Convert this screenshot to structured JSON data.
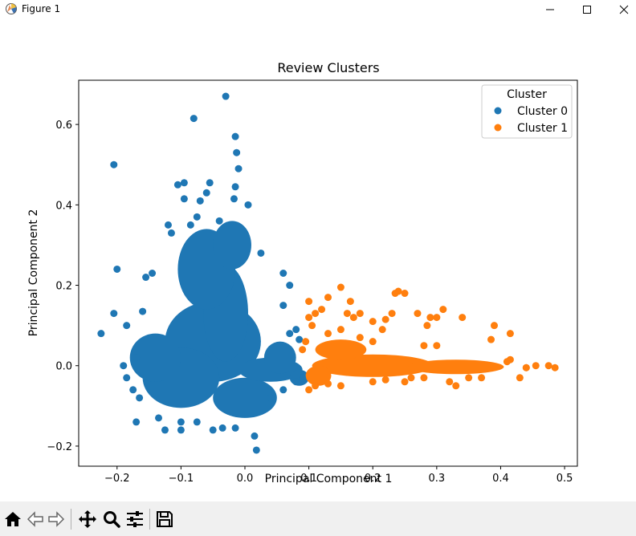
{
  "window": {
    "title": "Figure 1",
    "app_icon": "matplotlib-figure-icon",
    "controls": [
      "minimize-icon",
      "maximize-icon",
      "close-icon"
    ]
  },
  "toolbar": {
    "buttons": [
      "home-icon",
      "back-icon",
      "forward-icon",
      "pan-icon",
      "zoom-icon",
      "configure-subplots-icon",
      "save-icon"
    ]
  },
  "chart_data": {
    "type": "scatter",
    "title": "Review Clusters",
    "xlabel": "Principal Component 1",
    "ylabel": "Principal Component 2",
    "xlim": [
      -0.26,
      0.52
    ],
    "ylim": [
      -0.25,
      0.71
    ],
    "xticks": [
      "−0.2",
      "−0.1",
      "0.0",
      "0.1",
      "0.2",
      "0.3",
      "0.4",
      "0.5"
    ],
    "xtick_values": [
      -0.2,
      -0.1,
      0.0,
      0.1,
      0.2,
      0.3,
      0.4,
      0.5
    ],
    "yticks": [
      "−0.2",
      "0.0",
      "0.2",
      "0.4",
      "0.6"
    ],
    "ytick_values": [
      -0.2,
      0.0,
      0.2,
      0.4,
      0.6
    ],
    "grid": false,
    "legend": {
      "title": "Cluster",
      "placement": "top-right"
    },
    "series": [
      {
        "name": "Cluster 0",
        "color": "#1f77b4",
        "points": [
          [
            -0.03,
            0.67
          ],
          [
            -0.08,
            0.615
          ],
          [
            -0.205,
            0.5
          ],
          [
            -0.015,
            0.57
          ],
          [
            -0.013,
            0.53
          ],
          [
            -0.01,
            0.49
          ],
          [
            -0.015,
            0.445
          ],
          [
            -0.095,
            0.455
          ],
          [
            -0.105,
            0.45
          ],
          [
            -0.055,
            0.455
          ],
          [
            -0.095,
            0.415
          ],
          [
            -0.07,
            0.41
          ],
          [
            -0.06,
            0.43
          ],
          [
            -0.017,
            0.415
          ],
          [
            0.005,
            0.4
          ],
          [
            -0.2,
            0.24
          ],
          [
            -0.225,
            0.08
          ],
          [
            -0.205,
            0.13
          ],
          [
            -0.19,
            0.0
          ],
          [
            -0.185,
            0.1
          ],
          [
            -0.17,
            0.02
          ],
          [
            -0.16,
            0.135
          ],
          [
            -0.155,
            0.22
          ],
          [
            -0.145,
            0.23
          ],
          [
            -0.12,
            0.35
          ],
          [
            -0.115,
            0.33
          ],
          [
            -0.085,
            0.35
          ],
          [
            -0.075,
            0.37
          ],
          [
            -0.04,
            0.36
          ],
          [
            0.025,
            0.28
          ],
          [
            0.06,
            0.23
          ],
          [
            0.07,
            0.2
          ],
          [
            0.06,
            0.15
          ],
          [
            0.08,
            0.09
          ],
          [
            0.085,
            0.065
          ],
          [
            0.07,
            0.08
          ],
          [
            -0.185,
            -0.03
          ],
          [
            -0.175,
            -0.06
          ],
          [
            -0.165,
            -0.08
          ],
          [
            -0.17,
            -0.14
          ],
          [
            -0.135,
            -0.13
          ],
          [
            -0.125,
            -0.16
          ],
          [
            -0.1,
            -0.16
          ],
          [
            -0.1,
            -0.14
          ],
          [
            -0.075,
            -0.14
          ],
          [
            -0.05,
            -0.16
          ],
          [
            -0.035,
            -0.155
          ],
          [
            -0.015,
            -0.155
          ],
          [
            0.015,
            -0.175
          ],
          [
            0.018,
            -0.21
          ],
          [
            0.04,
            -0.08
          ],
          [
            0.06,
            -0.06
          ],
          [
            0.08,
            -0.04
          ],
          [
            0.09,
            -0.03
          ]
        ]
      },
      {
        "name": "Cluster 1",
        "color": "#ff7f0e",
        "points": [
          [
            0.485,
            -0.005
          ],
          [
            0.475,
            0.0
          ],
          [
            0.455,
            0.0
          ],
          [
            0.44,
            -0.005
          ],
          [
            0.44,
            -0.005
          ],
          [
            0.43,
            -0.03
          ],
          [
            0.415,
            0.015
          ],
          [
            0.41,
            0.01
          ],
          [
            0.415,
            0.08
          ],
          [
            0.39,
            0.1
          ],
          [
            0.385,
            0.065
          ],
          [
            0.35,
            -0.03
          ],
          [
            0.33,
            -0.05
          ],
          [
            0.32,
            -0.04
          ],
          [
            0.3,
            0.05
          ],
          [
            0.28,
            0.05
          ],
          [
            0.34,
            0.12
          ],
          [
            0.31,
            0.14
          ],
          [
            0.27,
            0.13
          ],
          [
            0.285,
            0.1
          ],
          [
            0.29,
            0.12
          ],
          [
            0.3,
            0.12
          ],
          [
            0.25,
            0.18
          ],
          [
            0.24,
            0.185
          ],
          [
            0.235,
            0.18
          ],
          [
            0.23,
            0.13
          ],
          [
            0.22,
            0.115
          ],
          [
            0.215,
            0.09
          ],
          [
            0.2,
            0.11
          ],
          [
            0.18,
            0.13
          ],
          [
            0.17,
            0.12
          ],
          [
            0.16,
            0.13
          ],
          [
            0.165,
            0.16
          ],
          [
            0.15,
            0.195
          ],
          [
            0.13,
            0.17
          ],
          [
            0.12,
            0.14
          ],
          [
            0.11,
            0.13
          ],
          [
            0.105,
            0.1
          ],
          [
            0.095,
            0.06
          ],
          [
            0.09,
            0.04
          ],
          [
            0.1,
            -0.06
          ],
          [
            0.11,
            -0.05
          ],
          [
            0.13,
            -0.045
          ],
          [
            0.15,
            -0.05
          ],
          [
            0.2,
            -0.04
          ],
          [
            0.22,
            -0.035
          ],
          [
            0.25,
            -0.04
          ],
          [
            0.26,
            -0.03
          ],
          [
            0.28,
            -0.03
          ],
          [
            0.37,
            -0.03
          ],
          [
            0.1,
            0.16
          ],
          [
            0.1,
            0.12
          ],
          [
            0.13,
            0.08
          ],
          [
            0.15,
            0.09
          ],
          [
            0.18,
            0.07
          ],
          [
            0.2,
            0.06
          ]
        ]
      }
    ],
    "dense_regions": [
      {
        "series": 0,
        "shape": "ellipse",
        "center": [
          -0.05,
          0.06
        ],
        "radius": [
          0.075,
          0.1
        ]
      },
      {
        "series": 0,
        "shape": "ellipse",
        "center": [
          -0.03,
          0.13
        ],
        "radius": [
          0.035,
          0.12
        ]
      },
      {
        "series": 0,
        "shape": "ellipse",
        "center": [
          -0.06,
          0.24
        ],
        "radius": [
          0.045,
          0.1
        ]
      },
      {
        "series": 0,
        "shape": "ellipse",
        "center": [
          -0.02,
          0.3
        ],
        "radius": [
          0.03,
          0.06
        ]
      },
      {
        "series": 0,
        "shape": "ellipse",
        "center": [
          -0.1,
          -0.03
        ],
        "radius": [
          0.06,
          0.075
        ]
      },
      {
        "series": 0,
        "shape": "ellipse",
        "center": [
          -0.14,
          0.02
        ],
        "radius": [
          0.04,
          0.06
        ]
      },
      {
        "series": 0,
        "shape": "ellipse",
        "center": [
          0.0,
          -0.08
        ],
        "radius": [
          0.05,
          0.05
        ]
      },
      {
        "series": 0,
        "shape": "ellipse",
        "center": [
          0.04,
          -0.01
        ],
        "radius": [
          0.05,
          0.03
        ]
      },
      {
        "series": 0,
        "shape": "ellipse",
        "center": [
          0.055,
          0.02
        ],
        "radius": [
          0.025,
          0.04
        ]
      },
      {
        "series": 0,
        "shape": "ellipse",
        "center": [
          0.085,
          -0.03
        ],
        "radius": [
          0.015,
          0.02
        ]
      },
      {
        "series": 1,
        "shape": "ellipse",
        "center": [
          0.2,
          0.0
        ],
        "radius": [
          0.095,
          0.028
        ]
      },
      {
        "series": 1,
        "shape": "ellipse",
        "center": [
          0.33,
          -0.003
        ],
        "radius": [
          0.075,
          0.018
        ]
      },
      {
        "series": 1,
        "shape": "ellipse",
        "center": [
          0.15,
          0.04
        ],
        "radius": [
          0.04,
          0.025
        ]
      },
      {
        "series": 1,
        "shape": "ellipse",
        "center": [
          0.115,
          -0.025
        ],
        "radius": [
          0.02,
          0.025
        ]
      }
    ]
  }
}
